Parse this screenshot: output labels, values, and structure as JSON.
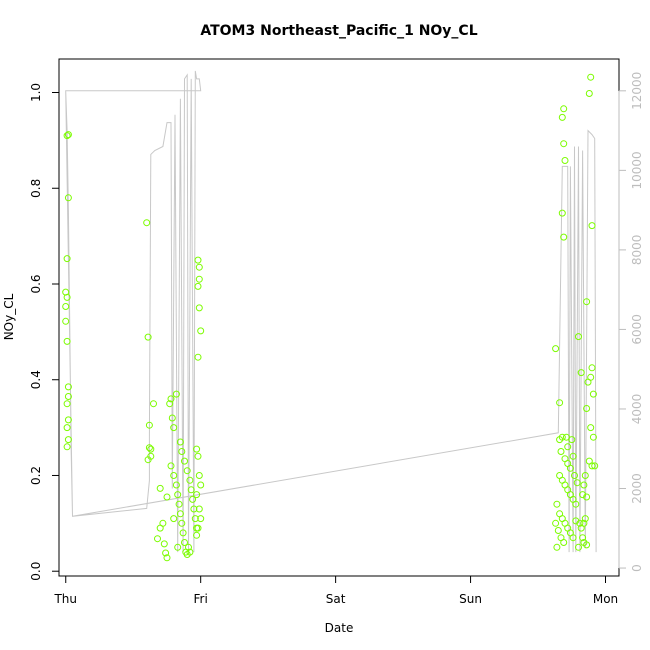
{
  "chart_data": {
    "type": "scatter",
    "title": "ATOM3 Northeast_Pacific_1 NOy_CL",
    "xlabel": "Date",
    "ylabel": "NOy_CL",
    "x_tick_labels": [
      "Thu",
      "Fri",
      "Sat",
      "Sun",
      "Mon"
    ],
    "xlim": [
      -0.05,
      4.1
    ],
    "ylim": [
      -0.01,
      1.07
    ],
    "y_ticks": [
      0.0,
      0.2,
      0.4,
      0.6,
      0.8,
      1.0
    ],
    "y2lim": [
      -200,
      12800
    ],
    "y2_ticks": [
      0,
      2000,
      4000,
      6000,
      8000,
      10000,
      12000
    ],
    "secondary_series": {
      "description": "altitude trace (right axis)",
      "color": "#c8c8c8",
      "points": [
        [
          0.0,
          12000
        ],
        [
          0.01,
          11000
        ],
        [
          0.02,
          9000
        ],
        [
          0.03,
          6000
        ],
        [
          0.04,
          3000
        ],
        [
          0.05,
          1300
        ],
        [
          0.6,
          1500
        ],
        [
          0.62,
          2200
        ],
        [
          0.62,
          3300
        ],
        [
          0.63,
          10400
        ],
        [
          0.66,
          10500
        ],
        [
          0.72,
          10600
        ],
        [
          0.75,
          11200
        ],
        [
          0.78,
          11200
        ],
        [
          0.79,
          2000
        ],
        [
          0.81,
          11400
        ],
        [
          0.83,
          400
        ],
        [
          0.85,
          11800
        ],
        [
          0.87,
          400
        ],
        [
          0.88,
          12300
        ],
        [
          0.9,
          12400
        ],
        [
          0.91,
          400
        ],
        [
          0.93,
          12300
        ],
        [
          0.95,
          400
        ],
        [
          0.96,
          12500
        ],
        [
          0.97,
          12300
        ],
        [
          0.99,
          12300
        ],
        [
          1.0,
          12000
        ],
        [
          0.0,
          12000
        ],
        [
          1.0,
          12000
        ],
        [
          0.0,
          12000
        ],
        [
          0.05,
          1300
        ],
        [
          3.65,
          3400
        ],
        [
          3.68,
          10100
        ],
        [
          3.72,
          10100
        ],
        [
          3.73,
          400
        ],
        [
          3.74,
          10100
        ],
        [
          3.76,
          400
        ],
        [
          3.77,
          10600
        ],
        [
          3.78,
          400
        ],
        [
          3.8,
          10600
        ],
        [
          3.81,
          400
        ],
        [
          3.83,
          10500
        ],
        [
          3.85,
          500
        ],
        [
          3.87,
          11000
        ],
        [
          3.9,
          10900
        ],
        [
          3.92,
          10800
        ],
        [
          3.93,
          400
        ]
      ]
    },
    "series": [
      {
        "color": "#7cfc00",
        "points": [
          [
            0.01,
            0.91
          ],
          [
            0.02,
            0.912
          ],
          [
            0.02,
            0.78
          ],
          [
            0.01,
            0.653
          ],
          [
            0.0,
            0.583
          ],
          [
            0.01,
            0.572
          ],
          [
            0.0,
            0.553
          ],
          [
            0.0,
            0.522
          ],
          [
            0.01,
            0.48
          ],
          [
            0.02,
            0.385
          ],
          [
            0.02,
            0.365
          ],
          [
            0.01,
            0.35
          ],
          [
            0.02,
            0.316
          ],
          [
            0.01,
            0.3
          ],
          [
            0.02,
            0.275
          ],
          [
            0.01,
            0.26
          ],
          [
            0.6,
            0.728
          ],
          [
            0.61,
            0.489
          ],
          [
            0.65,
            0.35
          ],
          [
            0.62,
            0.305
          ],
          [
            0.63,
            0.255
          ],
          [
            0.61,
            0.233
          ],
          [
            0.62,
            0.258
          ],
          [
            0.63,
            0.24
          ],
          [
            0.7,
            0.173
          ],
          [
            0.75,
            0.155
          ],
          [
            0.72,
            0.1
          ],
          [
            0.7,
            0.09
          ],
          [
            0.68,
            0.068
          ],
          [
            0.73,
            0.057
          ],
          [
            0.74,
            0.038
          ],
          [
            0.75,
            0.028
          ],
          [
            0.77,
            0.35
          ],
          [
            0.78,
            0.36
          ],
          [
            0.79,
            0.32
          ],
          [
            0.8,
            0.3
          ],
          [
            0.82,
            0.37
          ],
          [
            0.78,
            0.22
          ],
          [
            0.8,
            0.2
          ],
          [
            0.82,
            0.18
          ],
          [
            0.83,
            0.16
          ],
          [
            0.84,
            0.14
          ],
          [
            0.85,
            0.12
          ],
          [
            0.86,
            0.1
          ],
          [
            0.87,
            0.08
          ],
          [
            0.88,
            0.06
          ],
          [
            0.89,
            0.04
          ],
          [
            0.9,
            0.035
          ],
          [
            0.86,
            0.25
          ],
          [
            0.88,
            0.23
          ],
          [
            0.9,
            0.21
          ],
          [
            0.92,
            0.19
          ],
          [
            0.93,
            0.17
          ],
          [
            0.94,
            0.15
          ],
          [
            0.95,
            0.13
          ],
          [
            0.96,
            0.11
          ],
          [
            0.97,
            0.09
          ],
          [
            0.91,
            0.05
          ],
          [
            0.92,
            0.04
          ],
          [
            0.98,
            0.65
          ],
          [
            0.99,
            0.635
          ],
          [
            0.99,
            0.61
          ],
          [
            0.98,
            0.595
          ],
          [
            0.99,
            0.55
          ],
          [
            1.0,
            0.502
          ],
          [
            0.98,
            0.447
          ],
          [
            0.97,
            0.255
          ],
          [
            0.98,
            0.24
          ],
          [
            0.99,
            0.2
          ],
          [
            1.0,
            0.18
          ],
          [
            0.97,
            0.16
          ],
          [
            0.99,
            0.13
          ],
          [
            1.0,
            0.11
          ],
          [
            0.98,
            0.09
          ],
          [
            0.97,
            0.075
          ],
          [
            0.85,
            0.27
          ],
          [
            0.83,
            0.05
          ],
          [
            0.8,
            0.11
          ],
          [
            3.63,
            0.465
          ],
          [
            3.66,
            0.352
          ],
          [
            3.69,
            0.966
          ],
          [
            3.68,
            0.948
          ],
          [
            3.69,
            0.893
          ],
          [
            3.7,
            0.858
          ],
          [
            3.68,
            0.748
          ],
          [
            3.69,
            0.698
          ],
          [
            3.66,
            0.275
          ],
          [
            3.68,
            0.28
          ],
          [
            3.67,
            0.25
          ],
          [
            3.7,
            0.235
          ],
          [
            3.72,
            0.225
          ],
          [
            3.74,
            0.215
          ],
          [
            3.66,
            0.2
          ],
          [
            3.68,
            0.19
          ],
          [
            3.7,
            0.18
          ],
          [
            3.72,
            0.17
          ],
          [
            3.74,
            0.16
          ],
          [
            3.76,
            0.15
          ],
          [
            3.78,
            0.14
          ],
          [
            3.64,
            0.14
          ],
          [
            3.66,
            0.12
          ],
          [
            3.68,
            0.11
          ],
          [
            3.7,
            0.1
          ],
          [
            3.72,
            0.09
          ],
          [
            3.74,
            0.08
          ],
          [
            3.76,
            0.07
          ],
          [
            3.63,
            0.1
          ],
          [
            3.65,
            0.085
          ],
          [
            3.67,
            0.07
          ],
          [
            3.69,
            0.06
          ],
          [
            3.64,
            0.05
          ],
          [
            3.71,
            0.28
          ],
          [
            3.72,
            0.26
          ],
          [
            3.8,
            0.49
          ],
          [
            3.82,
            0.415
          ],
          [
            3.85,
            0.2
          ],
          [
            3.84,
            0.18
          ],
          [
            3.83,
            0.16
          ],
          [
            3.81,
            0.1
          ],
          [
            3.82,
            0.09
          ],
          [
            3.83,
            0.07
          ],
          [
            3.84,
            0.06
          ],
          [
            3.8,
            0.05
          ],
          [
            3.86,
            0.055
          ],
          [
            3.89,
            1.032
          ],
          [
            3.88,
            0.998
          ],
          [
            3.9,
            0.722
          ],
          [
            3.86,
            0.563
          ],
          [
            3.87,
            0.395
          ],
          [
            3.89,
            0.405
          ],
          [
            3.9,
            0.425
          ],
          [
            3.91,
            0.37
          ],
          [
            3.86,
            0.34
          ],
          [
            3.89,
            0.3
          ],
          [
            3.91,
            0.28
          ],
          [
            3.9,
            0.22
          ],
          [
            3.92,
            0.22
          ],
          [
            3.88,
            0.23
          ],
          [
            3.86,
            0.155
          ],
          [
            3.85,
            0.11
          ],
          [
            3.84,
            0.1
          ],
          [
            3.78,
            0.105
          ],
          [
            3.77,
            0.2
          ],
          [
            3.79,
            0.185
          ],
          [
            3.76,
            0.24
          ],
          [
            3.75,
            0.275
          ]
        ]
      }
    ]
  }
}
